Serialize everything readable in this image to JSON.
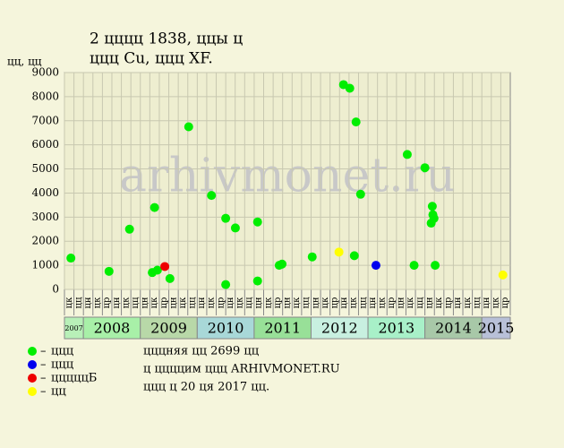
{
  "chart_data": {
    "type": "scatter",
    "title": [
      "2 цццц 1838, ццы ц",
      "ццц Cu, ццц XF."
    ],
    "y_label": "цц, цц",
    "watermark": "arhivmonet.ru",
    "xlim": [
      2007.667,
      2015.5
    ],
    "ylim": [
      0,
      9000
    ],
    "yticks": [
      0,
      1000,
      2000,
      3000,
      4000,
      5000,
      6000,
      7000,
      8000,
      9000
    ],
    "grid": true,
    "column_labels": [
      "цк",
      "цц",
      "цн",
      "цк",
      "цр",
      "цн",
      "цк",
      "цц",
      "цн",
      "цк",
      "цр",
      "цн",
      "цк",
      "цц",
      "цн",
      "цк",
      "цр",
      "цн",
      "цк",
      "цц",
      "цн",
      "цк",
      "цр",
      "цн",
      "цк",
      "цц",
      "цн",
      "цк",
      "цр",
      "цн",
      "цк",
      "цц",
      "цн",
      "цк",
      "цр",
      "цн",
      "цк",
      "цц",
      "цн",
      "цк",
      "цр",
      "цн",
      "цк",
      "цц",
      "цн",
      "цк",
      "цр"
    ],
    "year_bands": [
      {
        "label": "2007",
        "from": 2007.667,
        "to": 2008,
        "color": "#b8f0b8"
      },
      {
        "label": "2008",
        "from": 2008,
        "to": 2009,
        "color": "#a8f0a8"
      },
      {
        "label": "2009",
        "from": 2009,
        "to": 2010,
        "color": "#b8d8a8"
      },
      {
        "label": "2010",
        "from": 2010,
        "to": 2011,
        "color": "#a8d8d8"
      },
      {
        "label": "2011",
        "from": 2011,
        "to": 2012,
        "color": "#98e098"
      },
      {
        "label": "2012",
        "from": 2012,
        "to": 2013,
        "color": "#c8f0e0"
      },
      {
        "label": "2013",
        "from": 2013,
        "to": 2014,
        "color": "#a8f0c8"
      },
      {
        "label": "2014",
        "from": 2014,
        "to": 2015,
        "color": "#a8c8a8"
      },
      {
        "label": "2015",
        "from": 2015,
        "to": 2015.5,
        "color": "#b8c0d8"
      }
    ],
    "series": [
      {
        "name": "ццц",
        "color": "#00ee00",
        "x": [
          2007.78,
          2008.45,
          2008.81,
          2009.21,
          2009.25,
          2009.3,
          2009.52,
          2009.85,
          2010.25,
          2010.5,
          2010.5,
          2010.67,
          2011.06,
          2011.06,
          2011.44,
          2011.49,
          2012.02,
          2012.57,
          2012.68,
          2012.76,
          2012.79,
          2012.87,
          2013.69,
          2013.81,
          2014.0,
          2014.11,
          2014.13,
          2014.14,
          2014.16,
          2014.18
        ],
        "values": [
          1300,
          750,
          2500,
          700,
          3400,
          800,
          450,
          6750,
          3900,
          2950,
          200,
          2550,
          2800,
          350,
          1000,
          1050,
          1350,
          8500,
          8350,
          1400,
          6950,
          3950,
          5600,
          1000,
          5050,
          2750,
          3450,
          3100,
          2950,
          1000
        ]
      },
      {
        "name": "ццц",
        "color": "#0000ee",
        "x": [
          2013.14
        ],
        "values": [
          1000
        ]
      },
      {
        "name": "цццццБ",
        "color": "#ee0000",
        "x": [
          2009.43
        ],
        "values": [
          950
        ]
      },
      {
        "name": "цц",
        "color": "#ffff00",
        "x": [
          2012.49,
          2015.37
        ],
        "values": [
          1550,
          600
        ]
      }
    ],
    "notes": [
      "цццняя цц 2699 цц",
      "ц ццццим ццц ARHIVMONET.RU",
      "ццц ц 20 ця 2017 цц."
    ]
  }
}
